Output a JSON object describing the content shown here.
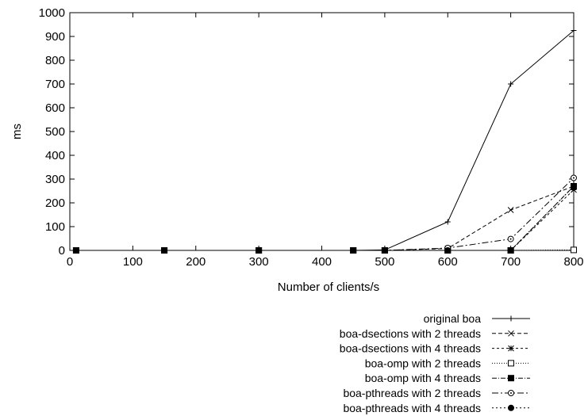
{
  "chart_data": {
    "type": "line",
    "title": "",
    "xlabel": "Number of clients/s",
    "ylabel": "ms",
    "xlim": [
      0,
      800
    ],
    "ylim": [
      0,
      1000
    ],
    "xticks": [
      "0",
      "100",
      "200",
      "300",
      "400",
      "500",
      "600",
      "700",
      "800"
    ],
    "yticks": [
      "0",
      "100",
      "200",
      "300",
      "400",
      "500",
      "600",
      "700",
      "800",
      "900",
      "1000"
    ],
    "grid": false,
    "legend_position": "bottom-right, below plot",
    "x": [
      10,
      150,
      300,
      450,
      500,
      600,
      700,
      800
    ],
    "series": [
      {
        "name": "original boa",
        "marker": "plus",
        "dash": "solid",
        "values": [
          0,
          0,
          0,
          0,
          2,
          120,
          700,
          925
        ]
      },
      {
        "name": "boa-dsections with 2 threads",
        "marker": "cross",
        "dash": "dashed",
        "values": [
          0,
          0,
          0,
          0,
          0,
          8,
          170,
          270
        ]
      },
      {
        "name": "boa-dsections with 4 threads",
        "marker": "star",
        "dash": "short-dash",
        "values": [
          0,
          0,
          0,
          0,
          0,
          0,
          0,
          255
        ]
      },
      {
        "name": "boa-omp with 2 threads",
        "marker": "open-square",
        "dash": "dotted",
        "values": [
          0,
          0,
          0,
          0,
          0,
          0,
          0,
          2
        ]
      },
      {
        "name": "boa-omp with 4 threads",
        "marker": "filled-square",
        "dash": "dash-dot",
        "values": [
          0,
          0,
          0,
          0,
          0,
          0,
          0,
          270
        ]
      },
      {
        "name": "boa-pthreads with 2 threads",
        "marker": "open-circle",
        "dash": "dash-dot-long",
        "values": [
          0,
          0,
          0,
          0,
          0,
          10,
          48,
          305
        ]
      },
      {
        "name": "boa-pthreads with 4 threads",
        "marker": "filled-circle",
        "dash": "short-dot",
        "values": [
          0,
          0,
          0,
          0,
          0,
          0,
          0,
          270
        ]
      }
    ]
  }
}
